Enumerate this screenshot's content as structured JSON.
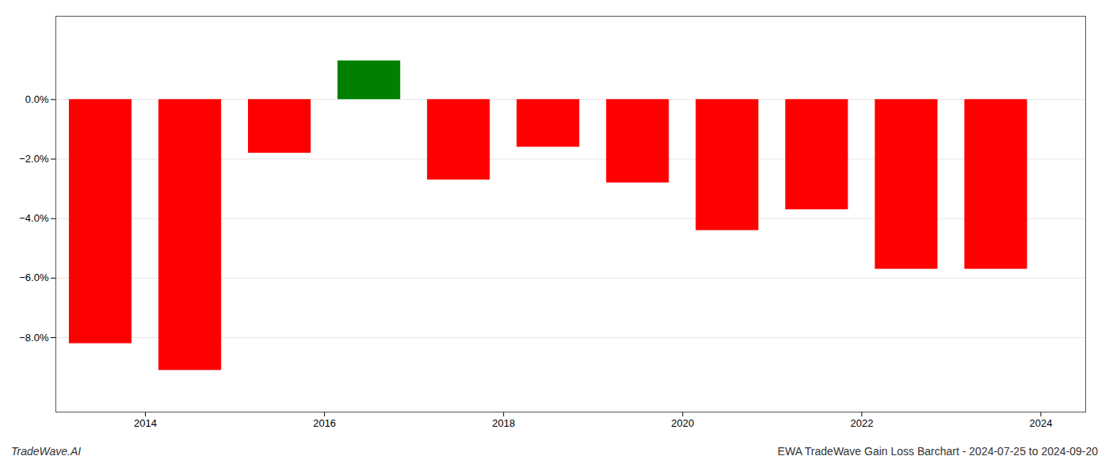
{
  "chart_data": {
    "type": "bar",
    "x": [
      2013.5,
      2014.5,
      2015.5,
      2016.5,
      2017.5,
      2018.5,
      2019.5,
      2020.5,
      2021.5,
      2022.5,
      2023.5
    ],
    "values": [
      -0.082,
      -0.091,
      -0.018,
      0.013,
      -0.027,
      -0.016,
      -0.028,
      -0.044,
      -0.037,
      -0.057,
      -0.057
    ],
    "colors": [
      "#ff0000",
      "#ff0000",
      "#ff0000",
      "#008000",
      "#ff0000",
      "#ff0000",
      "#ff0000",
      "#ff0000",
      "#ff0000",
      "#ff0000",
      "#ff0000"
    ],
    "xlim": [
      2013.0,
      2024.5
    ],
    "xticks": [
      2014,
      2016,
      2018,
      2020,
      2022,
      2024
    ],
    "ylim": [
      -0.105,
      0.028
    ],
    "yticks": [
      {
        "value": -0.08,
        "label": "−8.0%"
      },
      {
        "value": -0.06,
        "label": "−6.0%"
      },
      {
        "value": -0.04,
        "label": "−4.0%"
      },
      {
        "value": -0.02,
        "label": "−2.0%"
      },
      {
        "value": 0.0,
        "label": "0.0%"
      }
    ],
    "grid": true,
    "annotations": [
      "TradeWave.AI",
      "EWA TradeWave Gain Loss Barchart - 2024-07-25 to 2024-09-20"
    ]
  }
}
